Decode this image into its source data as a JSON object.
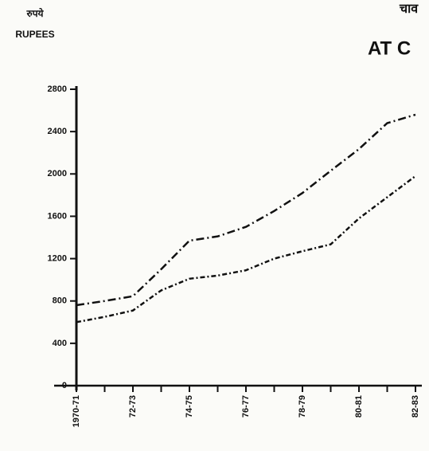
{
  "chart_data": {
    "type": "line",
    "hindi_label": "रुपये",
    "ylabel": "RUPEES",
    "hindi_title": "चाव",
    "title": "AT C",
    "categories": [
      "1970-71",
      null,
      "72-73",
      null,
      "74-75",
      null,
      "76-77",
      null,
      "78-79",
      null,
      "80-81",
      null,
      "82-83"
    ],
    "series": [
      {
        "color": "#111111",
        "dash": "dashdot",
        "values": [
          760,
          800,
          845,
          1100,
          1370,
          1410,
          1500,
          1650,
          1820,
          2030,
          2235,
          2480,
          2560
        ]
      },
      {
        "color": "#111111",
        "dash": "dashdot-short",
        "values": [
          600,
          650,
          710,
          900,
          1010,
          1040,
          1090,
          1200,
          1270,
          1335,
          1580,
          1780,
          1980
        ]
      }
    ],
    "ylim": [
      0,
      2800
    ],
    "yticks": [
      0,
      400,
      800,
      1200,
      1600,
      2000,
      2400,
      2800
    ],
    "grid": false
  }
}
